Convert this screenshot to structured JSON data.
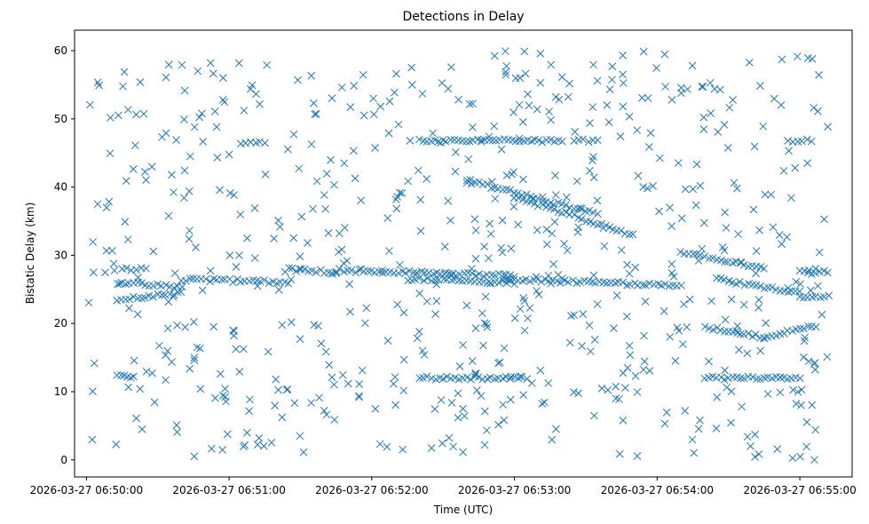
{
  "chart_data": {
    "type": "scatter",
    "title": "Detections in Delay",
    "xlabel": "Time (UTC)",
    "ylabel": "Bistatic Delay (km)",
    "marker": "x",
    "color": "#1f77b4",
    "grid": false,
    "legend": "none",
    "x_is_time": true,
    "xlim": [
      "2026-03-27 06:49:55",
      "2026-03-27 06:55:22"
    ],
    "ylim": [
      -2.5,
      63
    ],
    "xticks": [
      "2026-03-27 06:50:00",
      "2026-03-27 06:51:00",
      "2026-03-27 06:52:00",
      "2026-03-27 06:53:00",
      "2026-03-27 06:54:00",
      "2026-03-27 06:55:00"
    ],
    "yticks": [
      0,
      10,
      20,
      30,
      40,
      50,
      60
    ],
    "tracks": [
      {
        "x": [
          "2026-03-27 06:50:13",
          "2026-03-27 06:50:40"
        ],
        "y": [
          23.5,
          24.5
        ]
      },
      {
        "x": [
          "2026-03-27 06:50:13",
          "2026-03-27 06:50:40"
        ],
        "y": [
          26.0,
          25.3
        ]
      },
      {
        "x": [
          "2026-03-27 06:50:15",
          "2026-03-27 06:50:25"
        ],
        "y": [
          28.0,
          28.0
        ]
      },
      {
        "x": [
          "2026-03-27 06:50:13",
          "2026-03-27 06:50:20"
        ],
        "y": [
          12.3,
          12.3
        ]
      },
      {
        "x": [
          "2026-03-27 06:50:40",
          "2026-03-27 06:51:25"
        ],
        "y": [
          26.5,
          26.0
        ]
      },
      {
        "x": [
          "2026-03-27 06:51:25",
          "2026-03-27 06:51:45"
        ],
        "y": [
          28.0,
          27.5
        ]
      },
      {
        "x": [
          "2026-03-27 06:51:45",
          "2026-03-27 06:53:00"
        ],
        "y": [
          27.8,
          27.0
        ]
      },
      {
        "x": [
          "2026-03-27 06:52:15",
          "2026-03-27 06:53:00"
        ],
        "y": [
          26.5,
          26.0
        ]
      },
      {
        "x": [
          "2026-03-27 06:52:55",
          "2026-03-27 06:54:10"
        ],
        "y": [
          26.5,
          25.5
        ]
      },
      {
        "x": [
          "2026-03-27 06:52:20",
          "2026-03-27 06:53:05"
        ],
        "y": [
          12.0,
          12.0
        ]
      },
      {
        "x": [
          "2026-03-27 06:52:20",
          "2026-03-27 06:53:20"
        ],
        "y": [
          46.8,
          46.8
        ]
      },
      {
        "x": [
          "2026-03-27 06:51:05",
          "2026-03-27 06:51:15"
        ],
        "y": [
          46.5,
          46.5
        ]
      },
      {
        "x": [
          "2026-03-27 06:53:25",
          "2026-03-27 06:53:35"
        ],
        "y": [
          46.8,
          46.8
        ]
      },
      {
        "x": [
          "2026-03-27 06:54:55",
          "2026-03-27 06:55:05"
        ],
        "y": [
          46.8,
          46.8
        ]
      },
      {
        "x": [
          "2026-03-27 06:52:40",
          "2026-03-27 06:53:35"
        ],
        "y": [
          41.0,
          36.0
        ]
      },
      {
        "x": [
          "2026-03-27 06:53:00",
          "2026-03-27 06:53:50"
        ],
        "y": [
          38.5,
          33.0
        ]
      },
      {
        "x": [
          "2026-03-27 06:54:10",
          "2026-03-27 06:54:45"
        ],
        "y": [
          30.5,
          28.0
        ]
      },
      {
        "x": [
          "2026-03-27 06:54:25",
          "2026-03-27 06:55:00"
        ],
        "y": [
          26.5,
          24.5
        ]
      },
      {
        "x": [
          "2026-03-27 06:54:20",
          "2026-03-27 06:54:45"
        ],
        "y": [
          19.5,
          18.0
        ]
      },
      {
        "x": [
          "2026-03-27 06:54:45",
          "2026-03-27 06:55:05"
        ],
        "y": [
          18.0,
          19.5
        ]
      },
      {
        "x": [
          "2026-03-27 06:54:20",
          "2026-03-27 06:55:00"
        ],
        "y": [
          12.0,
          12.0
        ]
      },
      {
        "x": [
          "2026-03-27 06:55:00",
          "2026-03-27 06:55:12"
        ],
        "y": [
          24.0,
          24.0
        ]
      },
      {
        "x": [
          "2026-03-27 06:55:00",
          "2026-03-27 06:55:12"
        ],
        "y": [
          27.5,
          27.5
        ]
      }
    ],
    "clusters": [
      {
        "x": [
          "2026-03-27 06:50:00",
          "2026-03-27 06:55:12"
        ],
        "y": [
          0,
          60
        ],
        "count": 650
      }
    ]
  }
}
